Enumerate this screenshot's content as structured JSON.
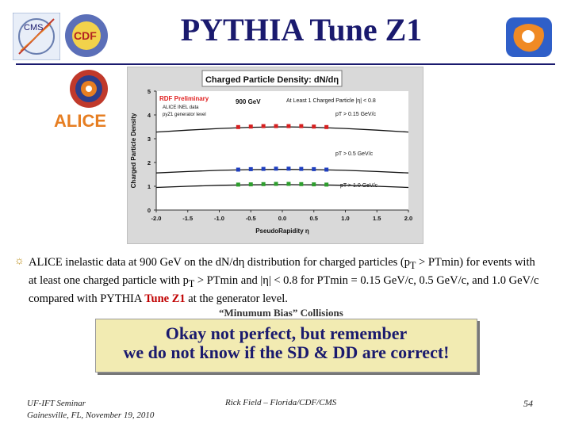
{
  "slide": {
    "title": "PYTHIA Tune Z1",
    "body_before_sub": "ALICE inelastic data at 900 GeV on the dN/dη distribution for charged particles (p",
    "body_sub1": "T",
    "body_mid": " > PTmin) for events with at least one charged particle with p",
    "body_sub2": "T",
    "body_after": " > PTmin and |η| < 0.8 for PTmin = 0.15 GeV/c, 0.5 GeV/c, and 1.0 GeV/c compared with PYTHIA ",
    "body_highlight": "Tune Z1",
    "body_end": " at the generator level.",
    "mb_label": "“Minumum Bias” Collisions",
    "callout_line1": "Okay not perfect, but remember",
    "callout_line2": "we do not know if the SD & DD are correct!",
    "footer_left_1": "UF-IFT Seminar",
    "footer_left_2": "Gainesville, FL, November 19, 2010",
    "footer_mid": "Rick Field – Florida/CDF/CMS",
    "page_number": "54",
    "logos": {
      "cms": "CMS",
      "cdf": "CDF",
      "alice": "ALICE"
    }
  },
  "chart_data": {
    "type": "scatter",
    "title": "Charged Particle Density: dN/dη",
    "xlabel": "PseudoRapidity η",
    "ylabel": "Charged Particle Density",
    "xlim": [
      -2.0,
      2.0
    ],
    "ylim": [
      0,
      5
    ],
    "xticks": [
      "-2.0",
      "-1.5",
      "-1.0",
      "-0.5",
      "0.0",
      "0.5",
      "1.0",
      "1.5",
      "2.0"
    ],
    "yticks": [
      "0",
      "1",
      "2",
      "3",
      "4",
      "5"
    ],
    "grid": false,
    "annotations": {
      "preliminary": "RDF Preliminary",
      "alice_data": "ALICE INEL data",
      "generator": "pyZ1 generator level",
      "energy": "900 GeV",
      "selection": "At Least 1 Charged Particle |η| < 0.8",
      "pt015": "pT > 0.15 GeV/c",
      "pt05": "pT > 0.5 GeV/c",
      "pt10": "pT > 1.0 GeV/c"
    },
    "series": [
      {
        "color": "#d62020",
        "x": [
          -0.7,
          -0.5,
          -0.3,
          -0.1,
          0.1,
          0.3,
          0.5,
          0.7
        ],
        "values": [
          3.49,
          3.51,
          3.53,
          3.53,
          3.53,
          3.53,
          3.51,
          3.49
        ]
      },
      {
        "color": "#1f3fbf",
        "x": [
          -0.7,
          -0.5,
          -0.3,
          -0.1,
          0.1,
          0.3,
          0.5,
          0.7
        ],
        "values": [
          1.7,
          1.72,
          1.73,
          1.74,
          1.74,
          1.73,
          1.72,
          1.7
        ]
      },
      {
        "color": "#2e9e2e",
        "x": [
          -0.7,
          -0.5,
          -0.3,
          -0.1,
          0.1,
          0.3,
          0.5,
          0.7
        ],
        "values": [
          1.07,
          1.08,
          1.09,
          1.1,
          1.1,
          1.09,
          1.08,
          1.07
        ]
      }
    ],
    "curves": [
      {
        "x": [
          -2.0,
          -1.5,
          -1.0,
          -0.5,
          0.0,
          0.5,
          1.0,
          1.5,
          2.0
        ],
        "values": [
          3.28,
          3.36,
          3.43,
          3.48,
          3.5,
          3.48,
          3.43,
          3.36,
          3.28
        ]
      },
      {
        "x": [
          -2.0,
          -1.5,
          -1.0,
          -0.5,
          0.0,
          0.5,
          1.0,
          1.5,
          2.0
        ],
        "values": [
          1.56,
          1.62,
          1.67,
          1.7,
          1.71,
          1.7,
          1.67,
          1.62,
          1.56
        ]
      },
      {
        "x": [
          -2.0,
          -1.5,
          -1.0,
          -0.5,
          0.0,
          0.5,
          1.0,
          1.5,
          2.0
        ],
        "values": [
          0.95,
          1.0,
          1.04,
          1.06,
          1.07,
          1.06,
          1.04,
          1.0,
          0.95
        ]
      }
    ]
  }
}
